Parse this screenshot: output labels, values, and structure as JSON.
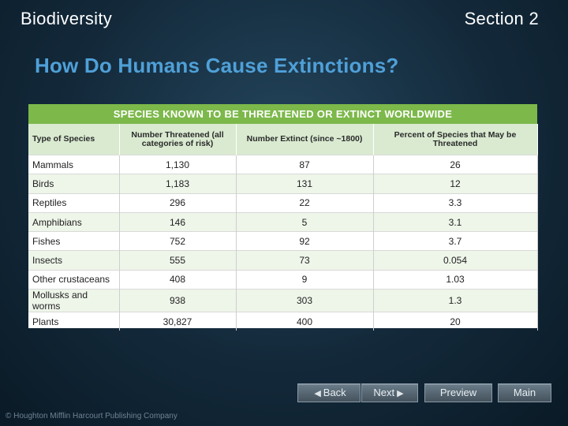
{
  "header": {
    "left": "Biodiversity",
    "right": "Section 2"
  },
  "title": "How Do Humans Cause Extinctions?",
  "table": {
    "banner": "SPECIES KNOWN TO BE THREATENED OR EXTINCT WORLDWIDE",
    "columns": [
      "Type of Species",
      "Number Threatened (all categories of risk)",
      "Number Extinct (since ~1800)",
      "Percent of Species that May be Threatened"
    ],
    "rows": [
      [
        "Mammals",
        "1,130",
        "87",
        "26"
      ],
      [
        "Birds",
        "1,183",
        "131",
        "12"
      ],
      [
        "Reptiles",
        "296",
        "22",
        "3.3"
      ],
      [
        "Amphibians",
        "146",
        "5",
        "3.1"
      ],
      [
        "Fishes",
        "752",
        "92",
        "3.7"
      ],
      [
        "Insects",
        "555",
        "73",
        "0.054"
      ],
      [
        "Other crustaceans",
        "408",
        "9",
        "1.03"
      ],
      [
        "Mollusks and worms",
        "938",
        "303",
        "1.3"
      ],
      [
        "Plants",
        "30,827",
        "400",
        "20"
      ]
    ]
  },
  "nav": {
    "back": "Back",
    "next": "Next",
    "preview": "Preview",
    "main": "Main"
  },
  "footer": "© Houghton Mifflin Harcourt Publishing Company"
}
